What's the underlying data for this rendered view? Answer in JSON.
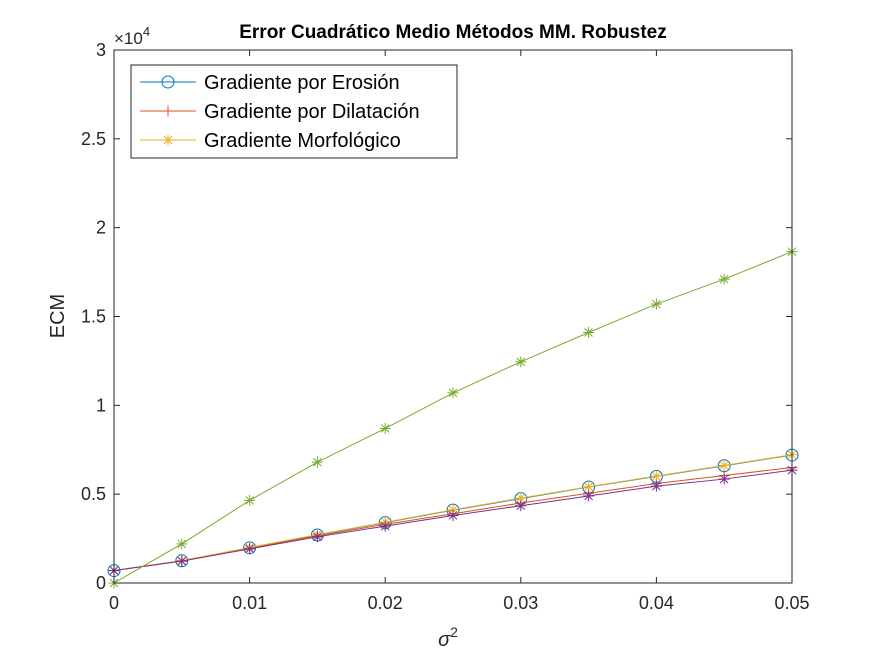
{
  "chart_data": {
    "type": "line",
    "title": "Error Cuadrático Medio Métodos MM. Robustez",
    "xlabel_base": "σ",
    "xlabel_sup": "2",
    "ylabel": "ECM",
    "y_exponent_prefix": "×10",
    "y_exponent_power": "4",
    "xlim": [
      0,
      0.05
    ],
    "ylim": [
      0,
      30000
    ],
    "xticks": [
      0,
      0.01,
      0.02,
      0.03,
      0.04,
      0.05
    ],
    "xtick_labels": [
      "0",
      "0.01",
      "0.02",
      "0.03",
      "0.04",
      "0.05"
    ],
    "yticks": [
      0,
      5000,
      10000,
      15000,
      20000,
      25000,
      30000
    ],
    "ytick_labels": [
      "0",
      "0.5",
      "1",
      "1.5",
      "2",
      "2.5",
      "3"
    ],
    "x": [
      0,
      0.005,
      0.01,
      0.015,
      0.02,
      0.025,
      0.03,
      0.035,
      0.04,
      0.045,
      0.05
    ],
    "legend_position": "top-left",
    "grid": false,
    "series": [
      {
        "name": "Gradiente por Erosión",
        "color": "#0072BD",
        "marker": "circle",
        "in_legend": true,
        "values": [
          700,
          1250,
          1980,
          2700,
          3400,
          4100,
          4750,
          5400,
          6000,
          6600,
          7200
        ]
      },
      {
        "name": "Gradiente por Dilatación",
        "color": "#D95319",
        "marker": "plus",
        "in_legend": true,
        "values": [
          700,
          1250,
          1950,
          2650,
          3300,
          3900,
          4500,
          5050,
          5600,
          6050,
          6500
        ]
      },
      {
        "name": "Gradiente Morfológico",
        "color": "#EDB120",
        "marker": "star",
        "in_legend": true,
        "values": [
          700,
          1260,
          2000,
          2720,
          3420,
          4120,
          4780,
          5420,
          6020,
          6620,
          7220
        ]
      },
      {
        "name": "",
        "color": "#7E2F8E",
        "marker": "star",
        "in_legend": false,
        "values": [
          700,
          1230,
          1920,
          2600,
          3200,
          3800,
          4350,
          4900,
          5450,
          5850,
          6350
        ]
      },
      {
        "name": "",
        "color": "#77AC30",
        "marker": "star",
        "in_legend": false,
        "values": [
          0,
          2200,
          4650,
          6800,
          8700,
          10700,
          12450,
          14100,
          15700,
          17100,
          18650
        ]
      }
    ]
  }
}
